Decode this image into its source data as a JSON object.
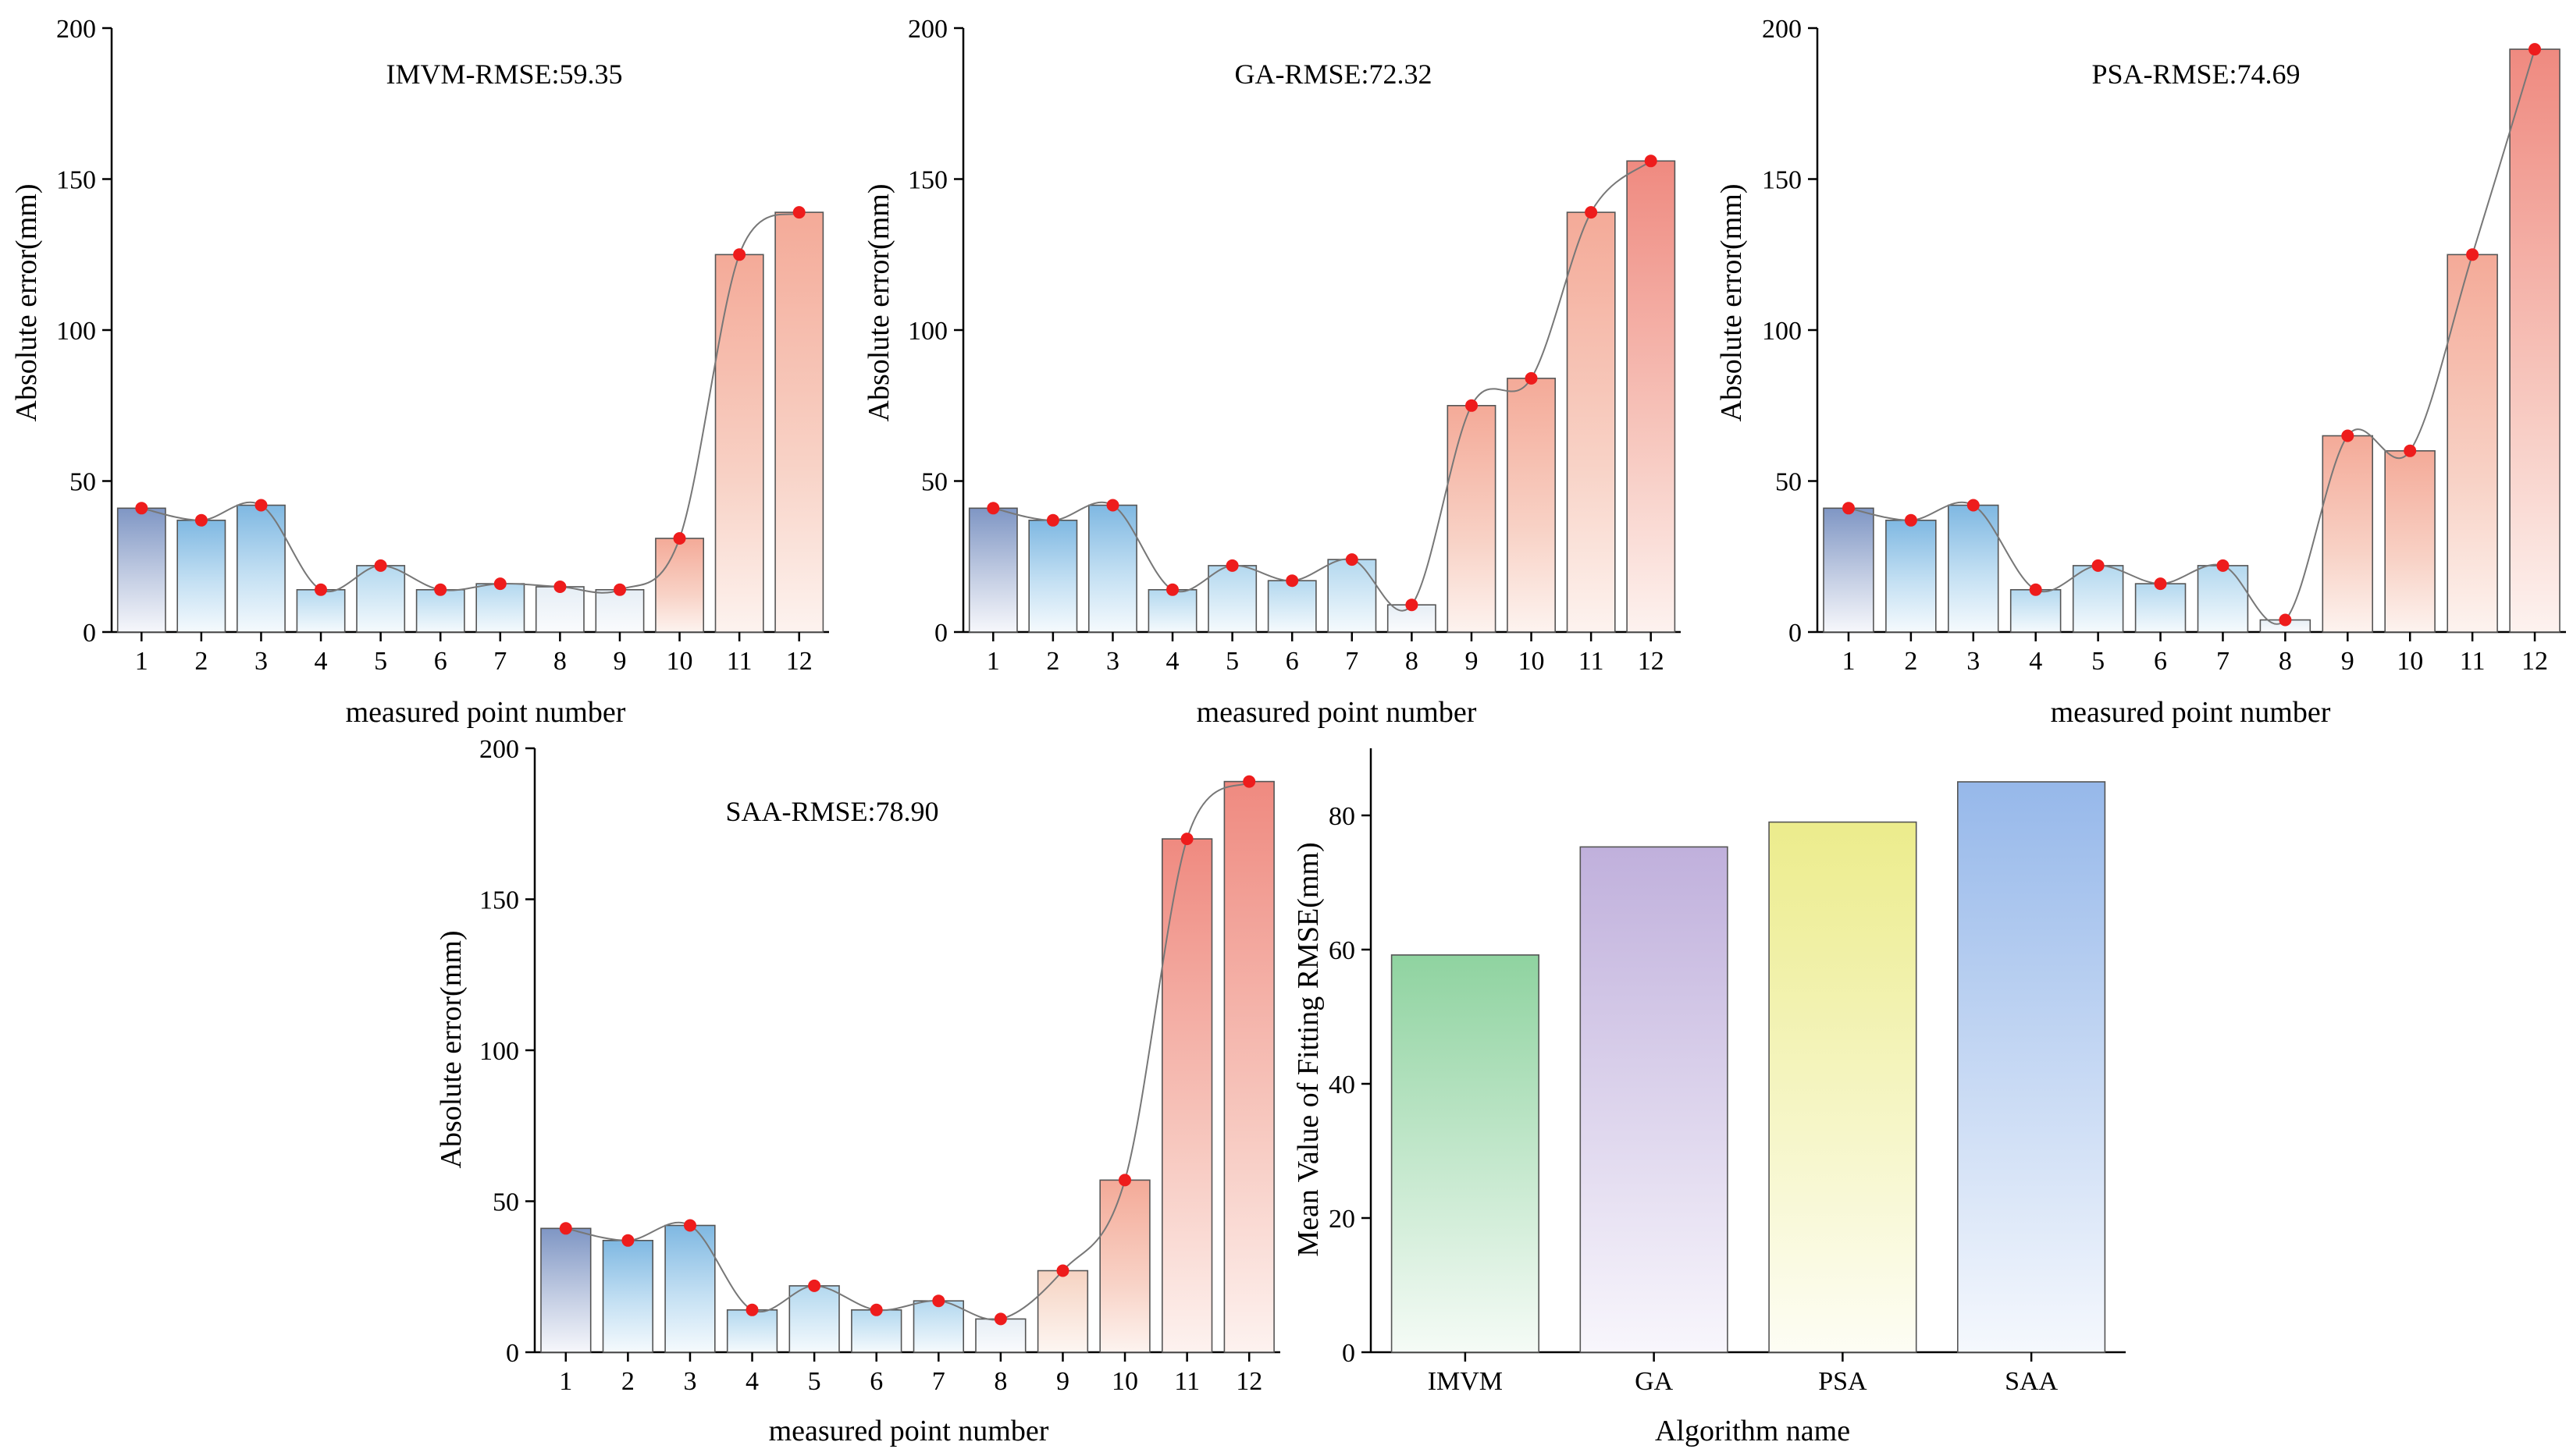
{
  "chart_data": [
    {
      "type": "bar",
      "title": "IMVM-RMSE:59.35",
      "xlabel": "measured point number",
      "ylabel": "Absolute error(mm)",
      "categories": [
        "1",
        "2",
        "3",
        "4",
        "5",
        "6",
        "7",
        "8",
        "9",
        "10",
        "11",
        "12"
      ],
      "values": [
        41,
        37,
        42,
        14,
        22,
        14,
        16,
        15,
        14,
        31,
        125,
        139
      ],
      "ylim": [
        0,
        200
      ],
      "yticks": [
        "0",
        "50",
        "100",
        "150",
        "200"
      ],
      "overlay": "smooth line with red point markers"
    },
    {
      "type": "bar",
      "title": "GA-RMSE:72.32",
      "xlabel": "measured point number",
      "ylabel": "Absolute error(mm)",
      "categories": [
        "1",
        "2",
        "3",
        "4",
        "5",
        "6",
        "7",
        "8",
        "9",
        "10",
        "11",
        "12"
      ],
      "values": [
        41,
        37,
        42,
        14,
        22,
        17,
        24,
        9,
        75,
        84,
        139,
        156
      ],
      "ylim": [
        0,
        200
      ],
      "yticks": [
        "0",
        "50",
        "100",
        "150",
        "200"
      ],
      "overlay": "smooth line with red point markers"
    },
    {
      "type": "bar",
      "title": "PSA-RMSE:74.69",
      "xlabel": "measured point number",
      "ylabel": "Absolute error(mm)",
      "categories": [
        "1",
        "2",
        "3",
        "4",
        "5",
        "6",
        "7",
        "8",
        "9",
        "10",
        "11",
        "12"
      ],
      "values": [
        41,
        37,
        42,
        14,
        22,
        16,
        22,
        4,
        65,
        60,
        125,
        193
      ],
      "ylim": [
        0,
        200
      ],
      "yticks": [
        "0",
        "50",
        "100",
        "150",
        "200"
      ],
      "overlay": "smooth line with red point markers"
    },
    {
      "type": "bar",
      "title": "SAA-RMSE:78.90",
      "xlabel": "measured point number",
      "ylabel": "Absolute error(mm)",
      "categories": [
        "1",
        "2",
        "3",
        "4",
        "5",
        "6",
        "7",
        "8",
        "9",
        "10",
        "11",
        "12"
      ],
      "values": [
        41,
        37,
        42,
        14,
        22,
        14,
        17,
        11,
        27,
        57,
        170,
        189
      ],
      "ylim": [
        0,
        200
      ],
      "yticks": [
        "0",
        "50",
        "100",
        "150",
        "200"
      ],
      "overlay": "smooth line with red point markers"
    },
    {
      "type": "bar",
      "title": "",
      "xlabel": "Algorithm name",
      "ylabel": "Mean Value of Fitting RMSE(mm)",
      "categories": [
        "IMVM",
        "GA",
        "PSA",
        "SAA"
      ],
      "values": [
        59.2,
        75.3,
        79.0,
        85.0
      ],
      "ylim": [
        0,
        90
      ],
      "yticks": [
        "0",
        "20",
        "40",
        "60",
        "80"
      ],
      "bar_colors": [
        "#8fd3a0",
        "#c0b0dc",
        "#ecec8c",
        "#96b8ea"
      ]
    }
  ]
}
